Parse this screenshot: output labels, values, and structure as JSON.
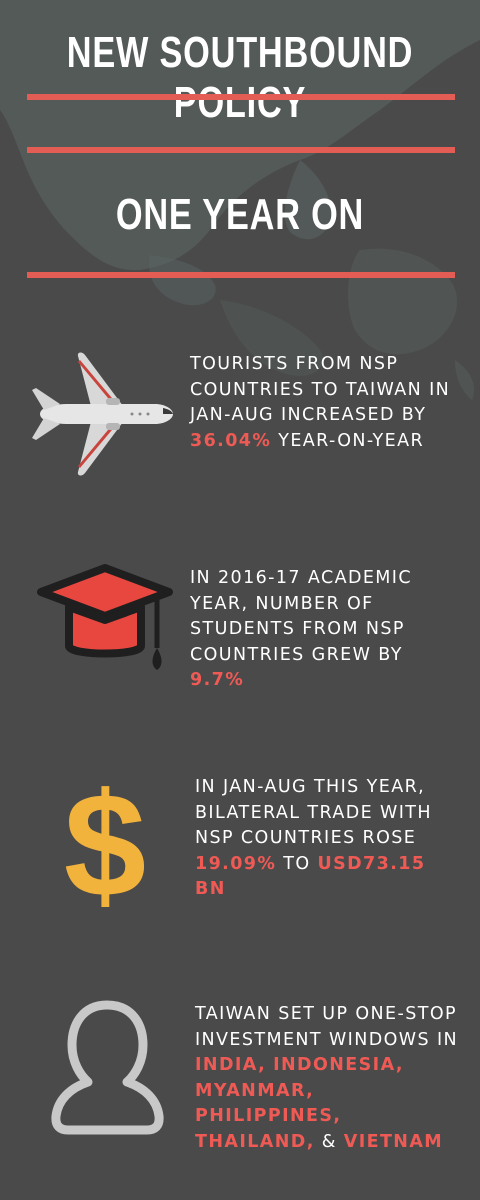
{
  "title": "NEW SOUTHBOUND POLICY",
  "subtitle": "ONE YEAR ON",
  "colors": {
    "background": "#4a4a4a",
    "accent": "#e35d55",
    "highlight": "#ef5a55",
    "dollar": "#f2b33d"
  },
  "stats": [
    {
      "icon": "airplane-icon",
      "text_before": "TOURISTS FROM NSP COUNTRIES TO TAIWAN IN JAN-AUG INCREASED BY ",
      "highlight": "36.04%",
      "text_after": " YEAR-ON-YEAR"
    },
    {
      "icon": "graduation-cap-icon",
      "text_before": "IN 2016-17 ACADEMIC YEAR, NUMBER OF STUDENTS FROM NSP COUNTRIES GREW BY ",
      "highlight": "9.7%"
    },
    {
      "icon": "dollar-sign-icon",
      "text_before": "IN JAN-AUG THIS YEAR, BILATERAL TRADE WITH NSP COUNTRIES ROSE ",
      "highlight": "19.09%",
      "text_mid": " TO ",
      "highlight2": "USD73.15 BN"
    },
    {
      "icon": "person-icon",
      "text_before": "TAIWAN SET UP ONE-STOP INVESTMENT WINDOWS IN ",
      "countries": [
        "INDIA,",
        "INDONESIA,",
        "MYANMAR,",
        "PHILIPPINES,",
        "THAILAND,"
      ],
      "amp": "& ",
      "last_country": "VIETNAM"
    }
  ]
}
